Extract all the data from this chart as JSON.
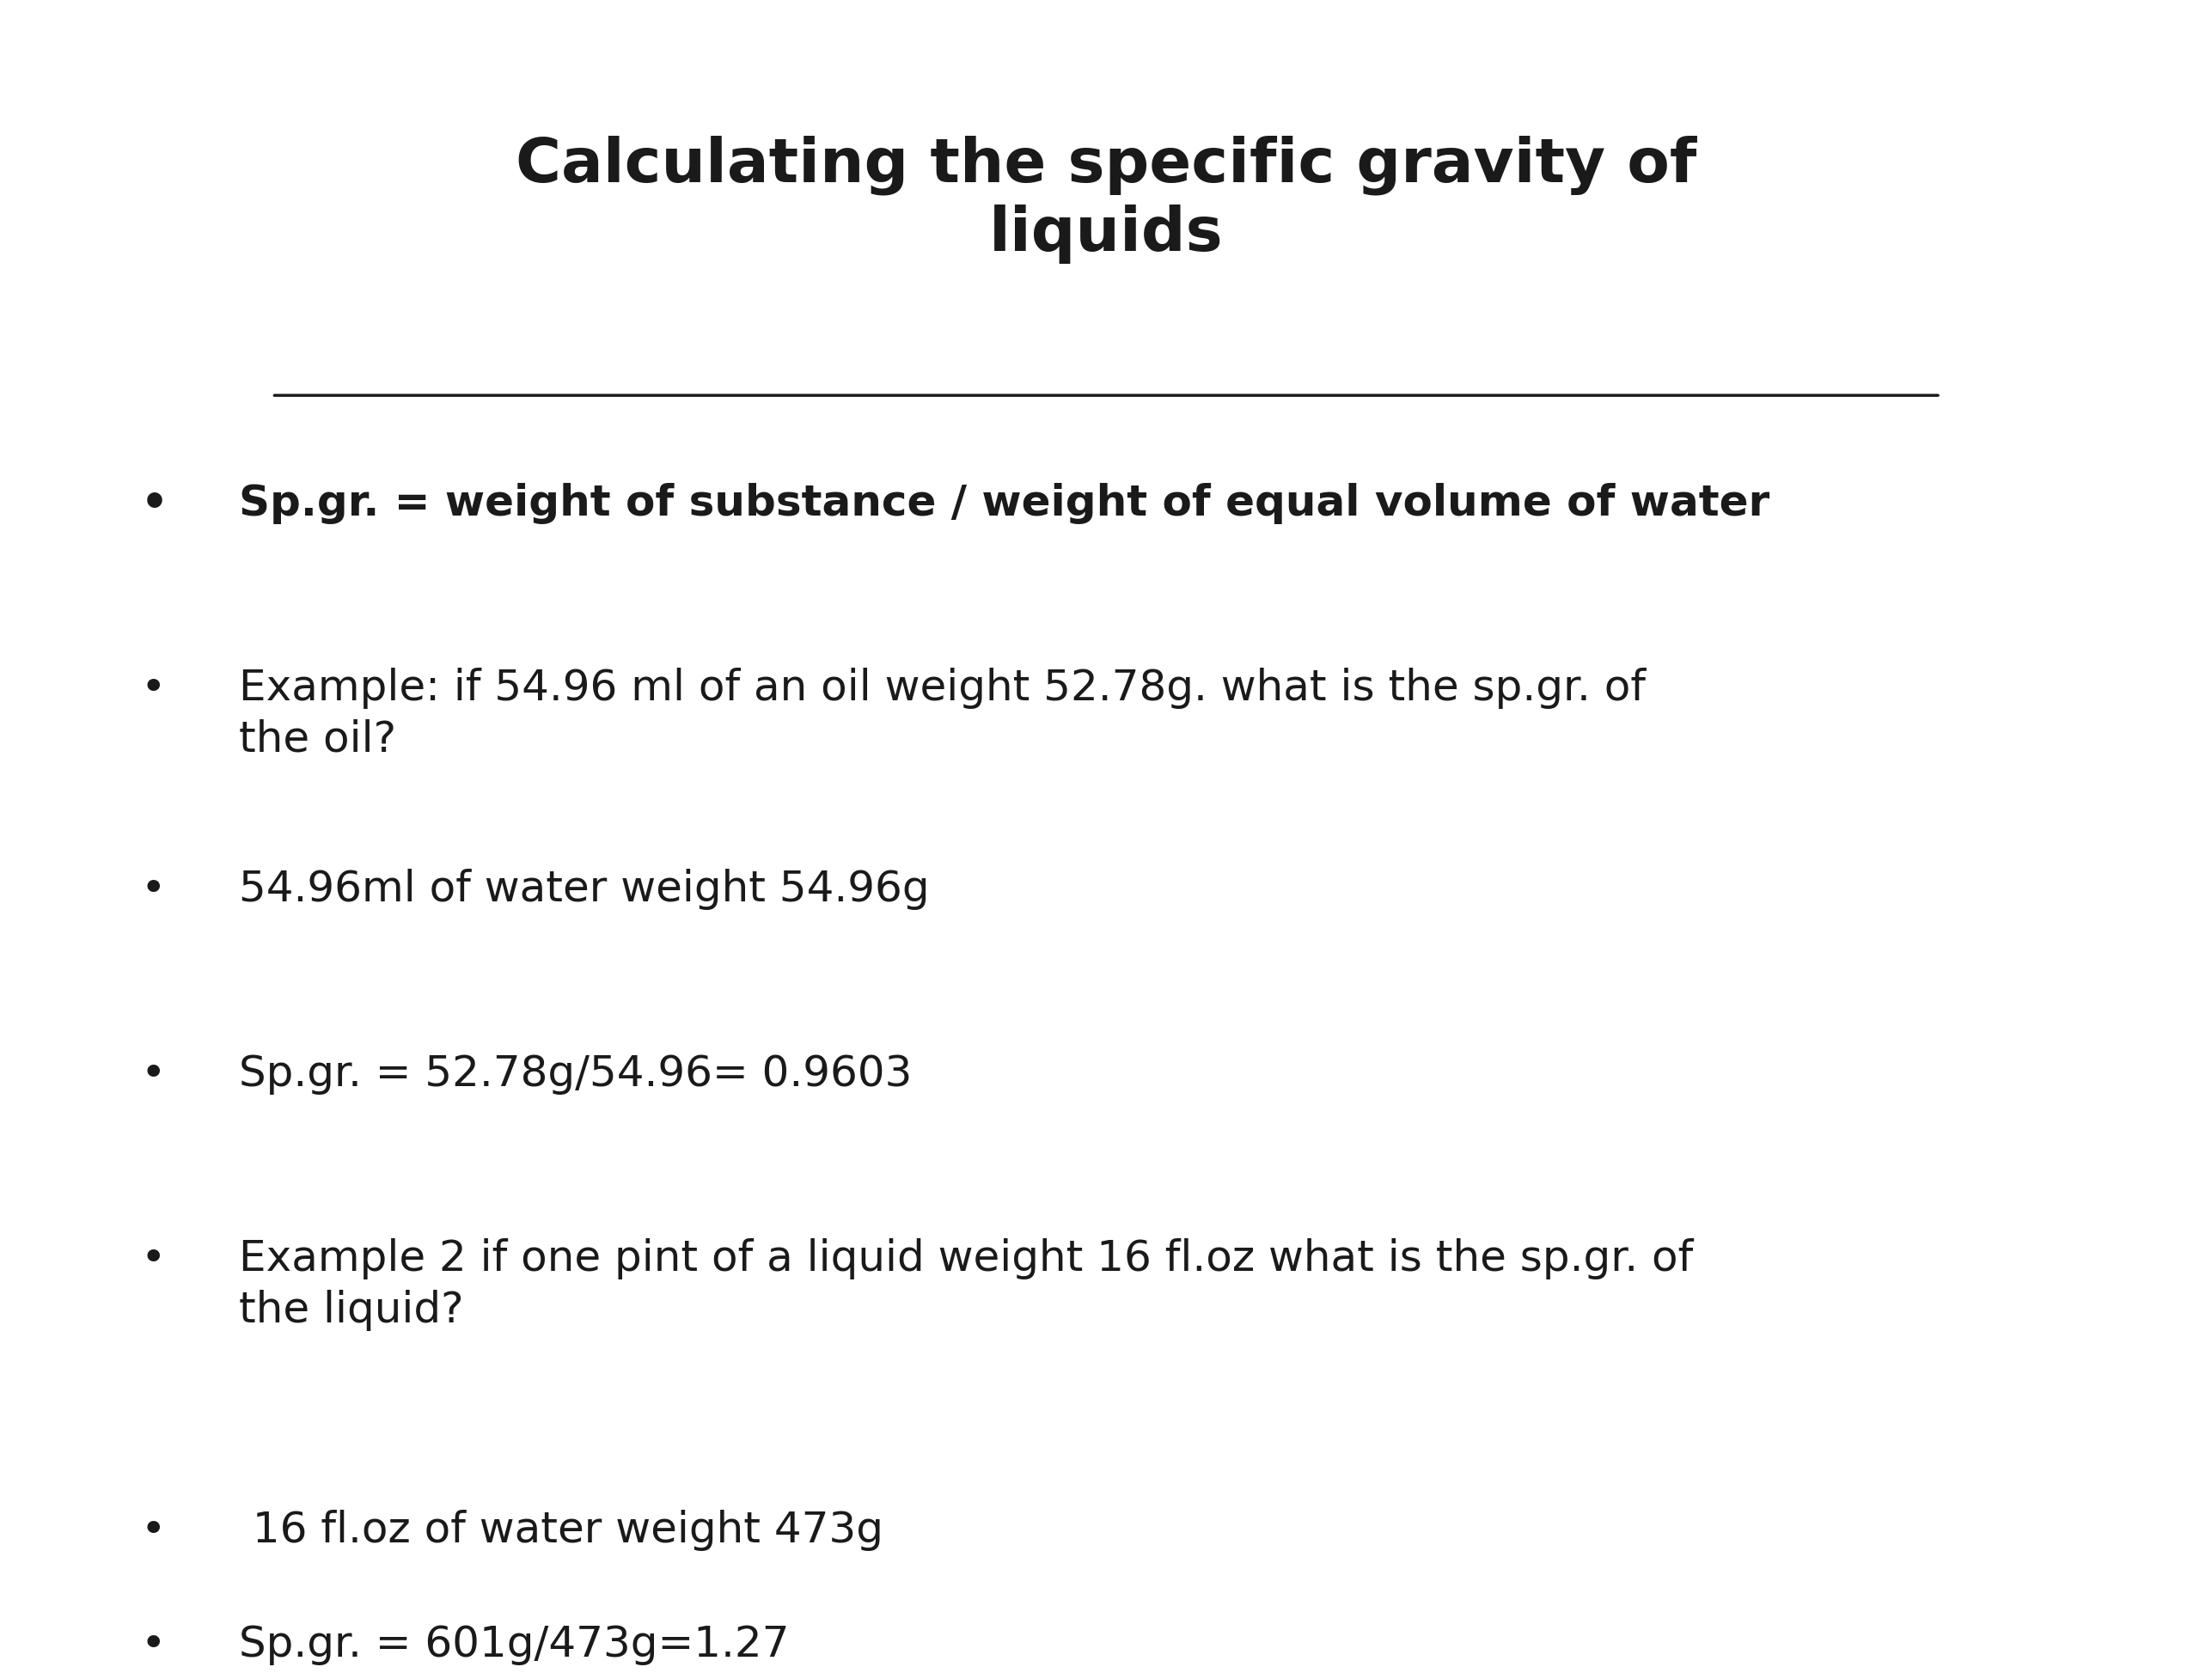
{
  "title_line1": "Calculating the specific gravity of",
  "title_line2": "liquids",
  "background_color": "#ffffff",
  "text_color": "#1a1a1a",
  "title_fontsize": 52,
  "bullet_fontsize_bold": 36,
  "bullet_fontsize": 36,
  "bullets": [
    {
      "text": "Sp.gr. = weight of substance / weight of equal volume of water",
      "bold": true,
      "indent": 0,
      "extra_space_before": true
    },
    {
      "text": "Example: if 54.96 ml of an oil weight 52.78g. what is the sp.gr. of\nthe oil?",
      "bold": false,
      "indent": 0,
      "extra_space_before": true
    },
    {
      "text": "54.96ml of water weight 54.96g",
      "bold": false,
      "indent": 0,
      "extra_space_before": false
    },
    {
      "text": "Sp.gr. = 52.78g/54.96= 0.9603",
      "bold": false,
      "indent": 0,
      "extra_space_before": true
    },
    {
      "text": "Example 2 if one pint of a liquid weight 16 fl.oz what is the sp.gr. of\nthe liquid?",
      "bold": false,
      "indent": 0,
      "extra_space_before": true
    },
    {
      "text": " 16 fl.oz of water weight 473g",
      "bold": false,
      "indent": 0,
      "extra_space_before": true
    },
    {
      "text": "Sp.gr. = 601g/473g=1.27",
      "bold": false,
      "indent": 0,
      "extra_space_before": false
    }
  ]
}
